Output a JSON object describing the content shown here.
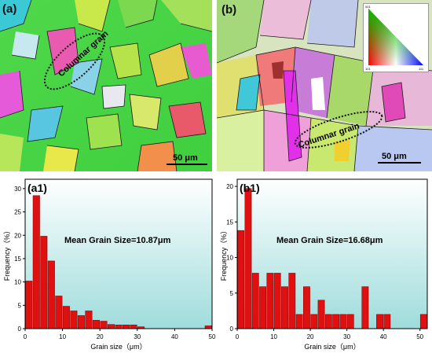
{
  "figure": {
    "panel_a": {
      "label": "(a)",
      "annotation": "Columnar grain",
      "scale": "50 μm"
    },
    "panel_b": {
      "label": "(b)",
      "annotation": "Columnar grain",
      "scale": "50 μm",
      "ipf_legend": {
        "top": "001",
        "left": "101",
        "right": "111"
      }
    }
  },
  "chart_data": [
    {
      "type": "bar",
      "panel_label": "(a1)",
      "annotation": "Mean Grain Size=10.87μm",
      "xlabel": "Grain size（μm）",
      "ylabel": "Frequency（%）",
      "xlim": [
        0,
        50
      ],
      "ylim": [
        0,
        32
      ],
      "xticks": [
        0,
        10,
        20,
        30,
        40,
        50
      ],
      "yticks": [
        0,
        5,
        10,
        15,
        20,
        25,
        30
      ],
      "bin_width": 2,
      "x": [
        1,
        3,
        5,
        7,
        9,
        11,
        13,
        15,
        17,
        19,
        21,
        23,
        25,
        27,
        29,
        31,
        49
      ],
      "values": [
        10.2,
        28.5,
        19.8,
        14.5,
        7.0,
        4.8,
        3.8,
        2.8,
        3.8,
        1.8,
        1.6,
        0.9,
        0.8,
        0.8,
        0.8,
        0.4,
        0.6
      ],
      "bar_color": "#e01010",
      "background_gradient": [
        "#ffffff",
        "#9fdcdc"
      ]
    },
    {
      "type": "bar",
      "panel_label": "(b1)",
      "annotation": "Mean Grain Size=16.68μm",
      "xlabel": "Grain size（μm）",
      "ylabel": "Frequency（%）",
      "xlim": [
        0,
        52
      ],
      "ylim": [
        0,
        21
      ],
      "xticks": [
        0,
        10,
        20,
        30,
        40,
        50
      ],
      "yticks": [
        0,
        5,
        10,
        15,
        20
      ],
      "bin_width": 2,
      "x": [
        1,
        3,
        5,
        7,
        9,
        11,
        13,
        15,
        17,
        19,
        21,
        23,
        25,
        27,
        29,
        31,
        33,
        35,
        37,
        39,
        41,
        43,
        45,
        47,
        49,
        51
      ],
      "values": [
        13.8,
        19.7,
        7.8,
        5.9,
        7.8,
        7.8,
        5.9,
        7.8,
        2.0,
        5.9,
        2.0,
        4.0,
        2.0,
        2.0,
        2.0,
        2.0,
        0,
        5.9,
        0,
        2.0,
        2.0,
        0,
        0,
        0,
        0,
        2.0
      ],
      "bar_color": "#e01010",
      "background_gradient": [
        "#ffffff",
        "#9fdcdc"
      ]
    }
  ]
}
